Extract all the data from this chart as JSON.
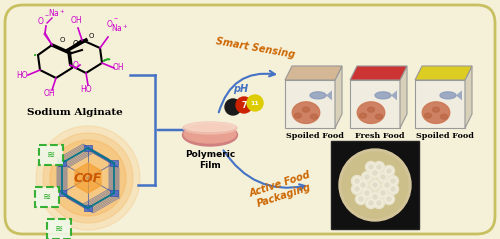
{
  "background_color": "#f5f0d8",
  "border_color": "#c8c060",
  "arrow_color": "#4472c4",
  "sodium_alginate_label": "Sodium Alginate",
  "cof_label": "COF",
  "polymeric_film_label": "Polymeric\nFilm",
  "smart_sensing_label": "Smart Sensing",
  "active_food_label": "Active Food\nPackaging",
  "food_labels": [
    "Spoiled Food",
    "Fresh Food",
    "Spoiled Food"
  ],
  "ph_label": "pH",
  "mol_color": "#cc00cc",
  "mol_bond_color": "#000000",
  "mol_green": "#22aa22",
  "cof_orange": "#f5a030",
  "cof_blue": "#2244aa",
  "cof_teal": "#007788",
  "sensing_color": "#cc6600",
  "dot_black": "#1a1a1a",
  "dot_red": "#cc2200",
  "dot_yellow": "#ddcc00",
  "box_front": "#f0ede0",
  "box_side": "#d8d0b8",
  "box_top1": "#d4b896",
  "box_top2": "#cc3333",
  "box_top3": "#ddcc22",
  "dish_outer": "#cc8888",
  "dish_inner": "#f5c8b8",
  "petri_bg": "#111111",
  "petri_inner": "#ccbb99",
  "colony_color": "#e8e0b0",
  "food_meat_color": "#cc7755",
  "food_fish_color": "#7799bb"
}
